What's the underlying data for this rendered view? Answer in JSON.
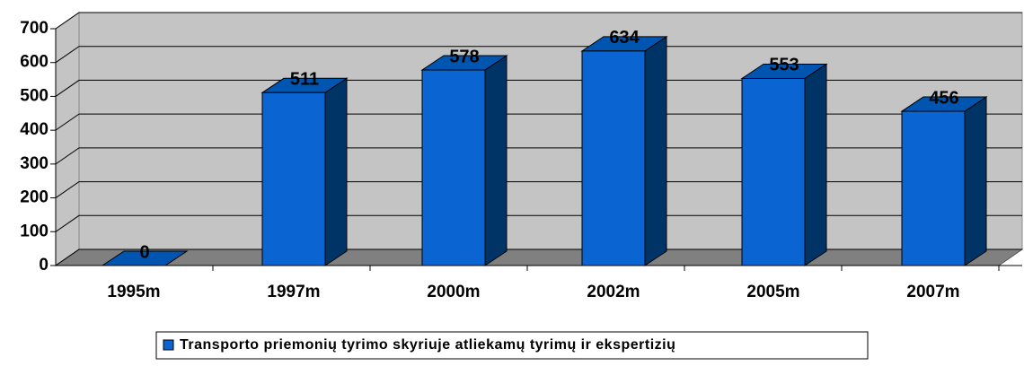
{
  "chart_data": {
    "type": "bar",
    "categories": [
      "1995m",
      "1997m",
      "2000m",
      "2002m",
      "2005m",
      "2007m"
    ],
    "series": [
      {
        "name": "Transporto priemonių tyrimo skyriuje atliekamų tyrimų ir ekspertizių",
        "color": "#0a64d2",
        "values": [
          0,
          511,
          578,
          634,
          553,
          456
        ]
      }
    ],
    "ylim": [
      0,
      700
    ],
    "yticks": [
      0,
      100,
      200,
      300,
      400,
      500,
      600,
      700
    ],
    "grid": true,
    "legend": "bottom"
  }
}
